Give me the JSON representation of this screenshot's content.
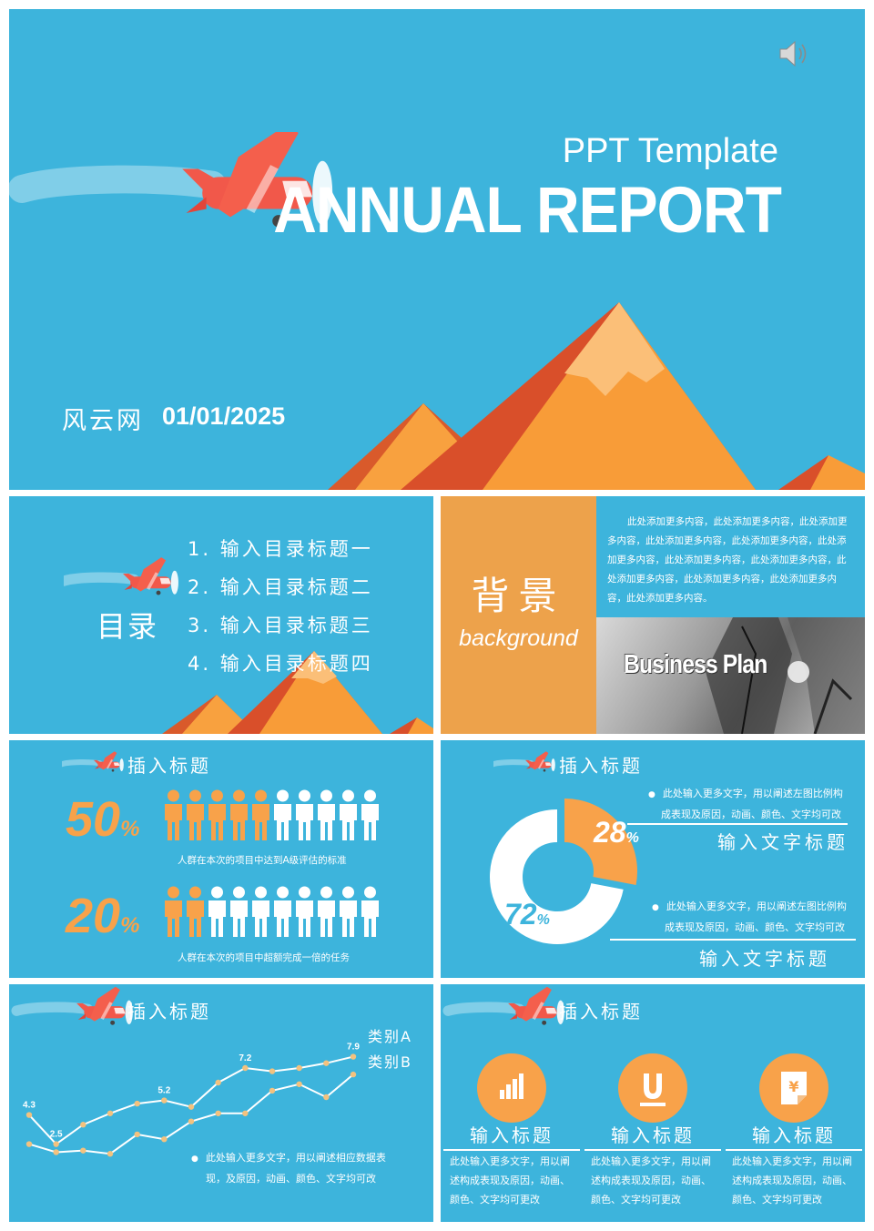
{
  "title_slide": {
    "subtitle": "PPT Template",
    "title": "ANNUAL REPORT",
    "author": "风云网",
    "date": "01/01/2025",
    "icons": [
      "speaker-icon",
      "plane-icon",
      "mountain-icon"
    ]
  },
  "toc_slide": {
    "title": "目录",
    "items": [
      "1. 输入目录标题一",
      "2. 输入目录标题二",
      "3. 输入目录标题三",
      "4. 输入目录标题四"
    ]
  },
  "background_slide": {
    "title": "背景",
    "subtitle": "background",
    "body": "此处添加更多内容，此处添加更多内容，此处添加更多内容，此处添加更多内容，此处添加更多内容，此处添加更多内容，此处添加更多内容，此处添加更多内容，此处添加更多内容，此处添加更多内容，此处添加更多内容，此处添加更多内容。",
    "image_text": "Business Plan"
  },
  "people_slide": {
    "heading": "插入标题",
    "rows": [
      {
        "percent": "50",
        "unit": "%",
        "highlighted": 5,
        "total": 10,
        "caption": "人群在本次的项目中达到A级评估的标准"
      },
      {
        "percent": "20",
        "unit": "%",
        "highlighted": 2,
        "total": 10,
        "caption": "人群在本次的项目中超额完成一倍的任务"
      }
    ],
    "colors": {
      "highlight": "#f8a24a",
      "normal": "#ffffff"
    }
  },
  "donut_slide": {
    "heading": "插入标题",
    "chart_data": {
      "type": "pie",
      "values": [
        28,
        72
      ],
      "labels": [
        "28",
        "72"
      ],
      "unit": "%",
      "colors": [
        "#f8a24a",
        "#ffffff"
      ]
    },
    "blocks": [
      {
        "text1": "此处输入更多文字，用以阐述左图比例构",
        "text2": "成表现及原因，动画、颜色、文字均可改",
        "title": "输入文字标题"
      },
      {
        "text1": "此处输入更多文字，用以阐述左图比例构",
        "text2": "成表现及原因，动画、颜色、文字均可改",
        "title": "输入文字标题"
      }
    ]
  },
  "line_slide": {
    "heading": "插入标题",
    "chart_data": {
      "type": "line",
      "series": [
        {
          "name": "类别A",
          "values": [
            4.3,
            2.5,
            3.7,
            4.4,
            5.0,
            5.2,
            4.8,
            6.3,
            7.2,
            7.0,
            7.2,
            7.5,
            7.9
          ],
          "labels": [
            "4.3",
            "2.5",
            "",
            "",
            "",
            "5.2",
            "",
            "",
            "7.2",
            "",
            "",
            "",
            "7.9"
          ]
        },
        {
          "name": "类别B",
          "values": [
            2.5,
            2.0,
            2.1,
            1.9,
            3.1,
            2.8,
            3.9,
            4.4,
            4.4,
            5.8,
            6.2,
            5.4,
            6.8
          ]
        }
      ],
      "ylim": [
        0,
        9
      ]
    },
    "note_line1": "此处输入更多文字，用以阐述相应数据表",
    "note_line2": "现，及原因，动画、颜色、文字均可改"
  },
  "icon_slide": {
    "heading": "插入标题",
    "items": [
      {
        "icon": "bar-chart-icon",
        "title": "输入标题",
        "desc": "此处输入更多文字，用以阐述构成表现及原因，动画、颜色、文字均可更改"
      },
      {
        "icon": "magnet-icon",
        "title": "输入标题",
        "desc": "此处输入更多文字，用以阐述构成表现及原因，动画、颜色、文字均可更改"
      },
      {
        "icon": "yen-document-icon",
        "title": "输入标题",
        "desc": "此处输入更多文字，用以阐述构成表现及原因，动画、颜色、文字均可更改"
      }
    ]
  }
}
